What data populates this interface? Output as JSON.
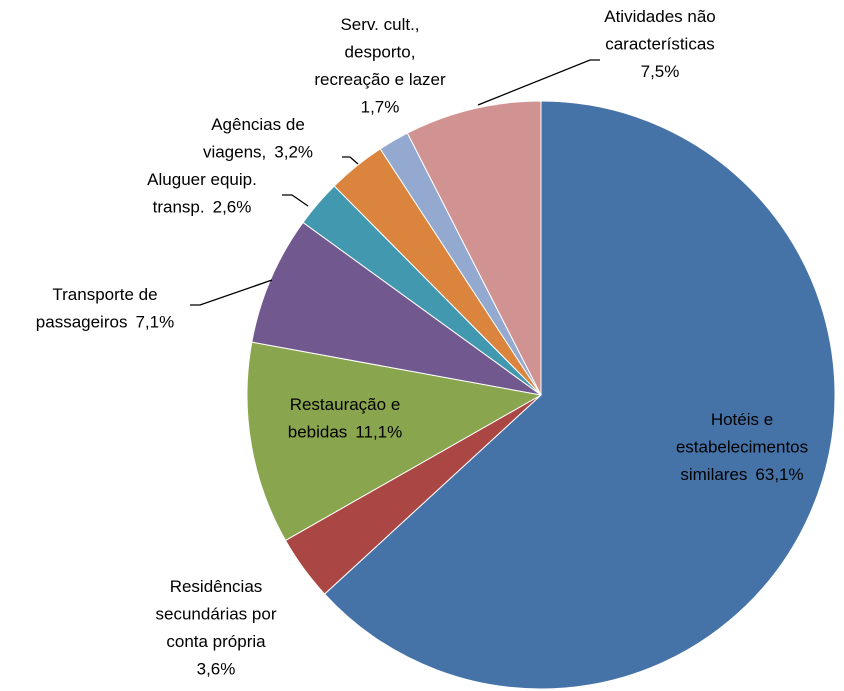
{
  "chart_data": {
    "type": "pie",
    "categories": [
      [
        "Hotéis e",
        "estabelecimentos",
        "similares"
      ],
      [
        "Residências",
        "secundárias por",
        "conta própria"
      ],
      [
        "Restauração e",
        "bebidas"
      ],
      [
        "Transporte de",
        "passageiros"
      ],
      [
        "Aluguer  equip.",
        "transp."
      ],
      [
        "Agências de",
        "viagens,"
      ],
      [
        "Serv. cult.,",
        "desporto,",
        "recreação e lazer"
      ],
      [
        "Atividades não",
        "características"
      ]
    ],
    "values": [
      63.1,
      3.6,
      11.1,
      7.1,
      2.6,
      3.2,
      1.7,
      7.5
    ],
    "value_labels": [
      "63,1%",
      "3,6%",
      "11,1%",
      "7,1%",
      "2,6%",
      "3,2%",
      "1,7%",
      "7,5%"
    ],
    "colors": [
      "#4572a7",
      "#aa4643",
      "#89a54e",
      "#71588f",
      "#4198af",
      "#db843d",
      "#93a9cf",
      "#d19392"
    ]
  }
}
